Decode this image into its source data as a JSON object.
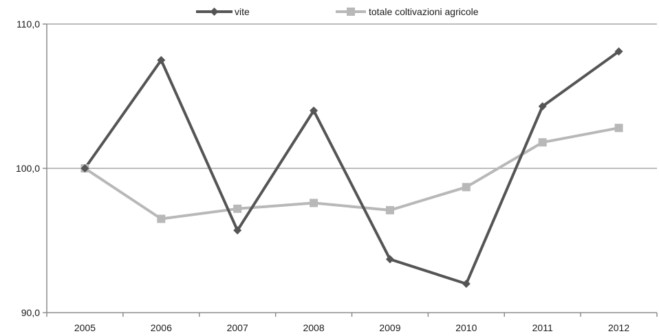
{
  "chart_data": {
    "type": "line",
    "title": "",
    "xlabel": "",
    "ylabel": "",
    "categories": [
      "2005",
      "2006",
      "2007",
      "2008",
      "2009",
      "2010",
      "2011",
      "2012"
    ],
    "y_ticks": [
      "90,0",
      "100,0",
      "110,0"
    ],
    "y_tick_values": [
      90,
      100,
      110
    ],
    "ylim": [
      90,
      110
    ],
    "grid": "horizontal",
    "legend_position": "top",
    "series": [
      {
        "name": "vite",
        "values": [
          100.0,
          107.5,
          95.7,
          104.0,
          93.7,
          92.0,
          104.3,
          108.1
        ],
        "color": "#555555",
        "marker": "diamond"
      },
      {
        "name": "totale coltivazioni agricole",
        "values": [
          100.0,
          96.5,
          97.2,
          97.6,
          97.1,
          98.7,
          101.8,
          102.8
        ],
        "color": "#b8b8b8",
        "marker": "square"
      }
    ]
  },
  "colors": {
    "axis": "#8c8c8c",
    "gridline": "#a6a6a6"
  }
}
